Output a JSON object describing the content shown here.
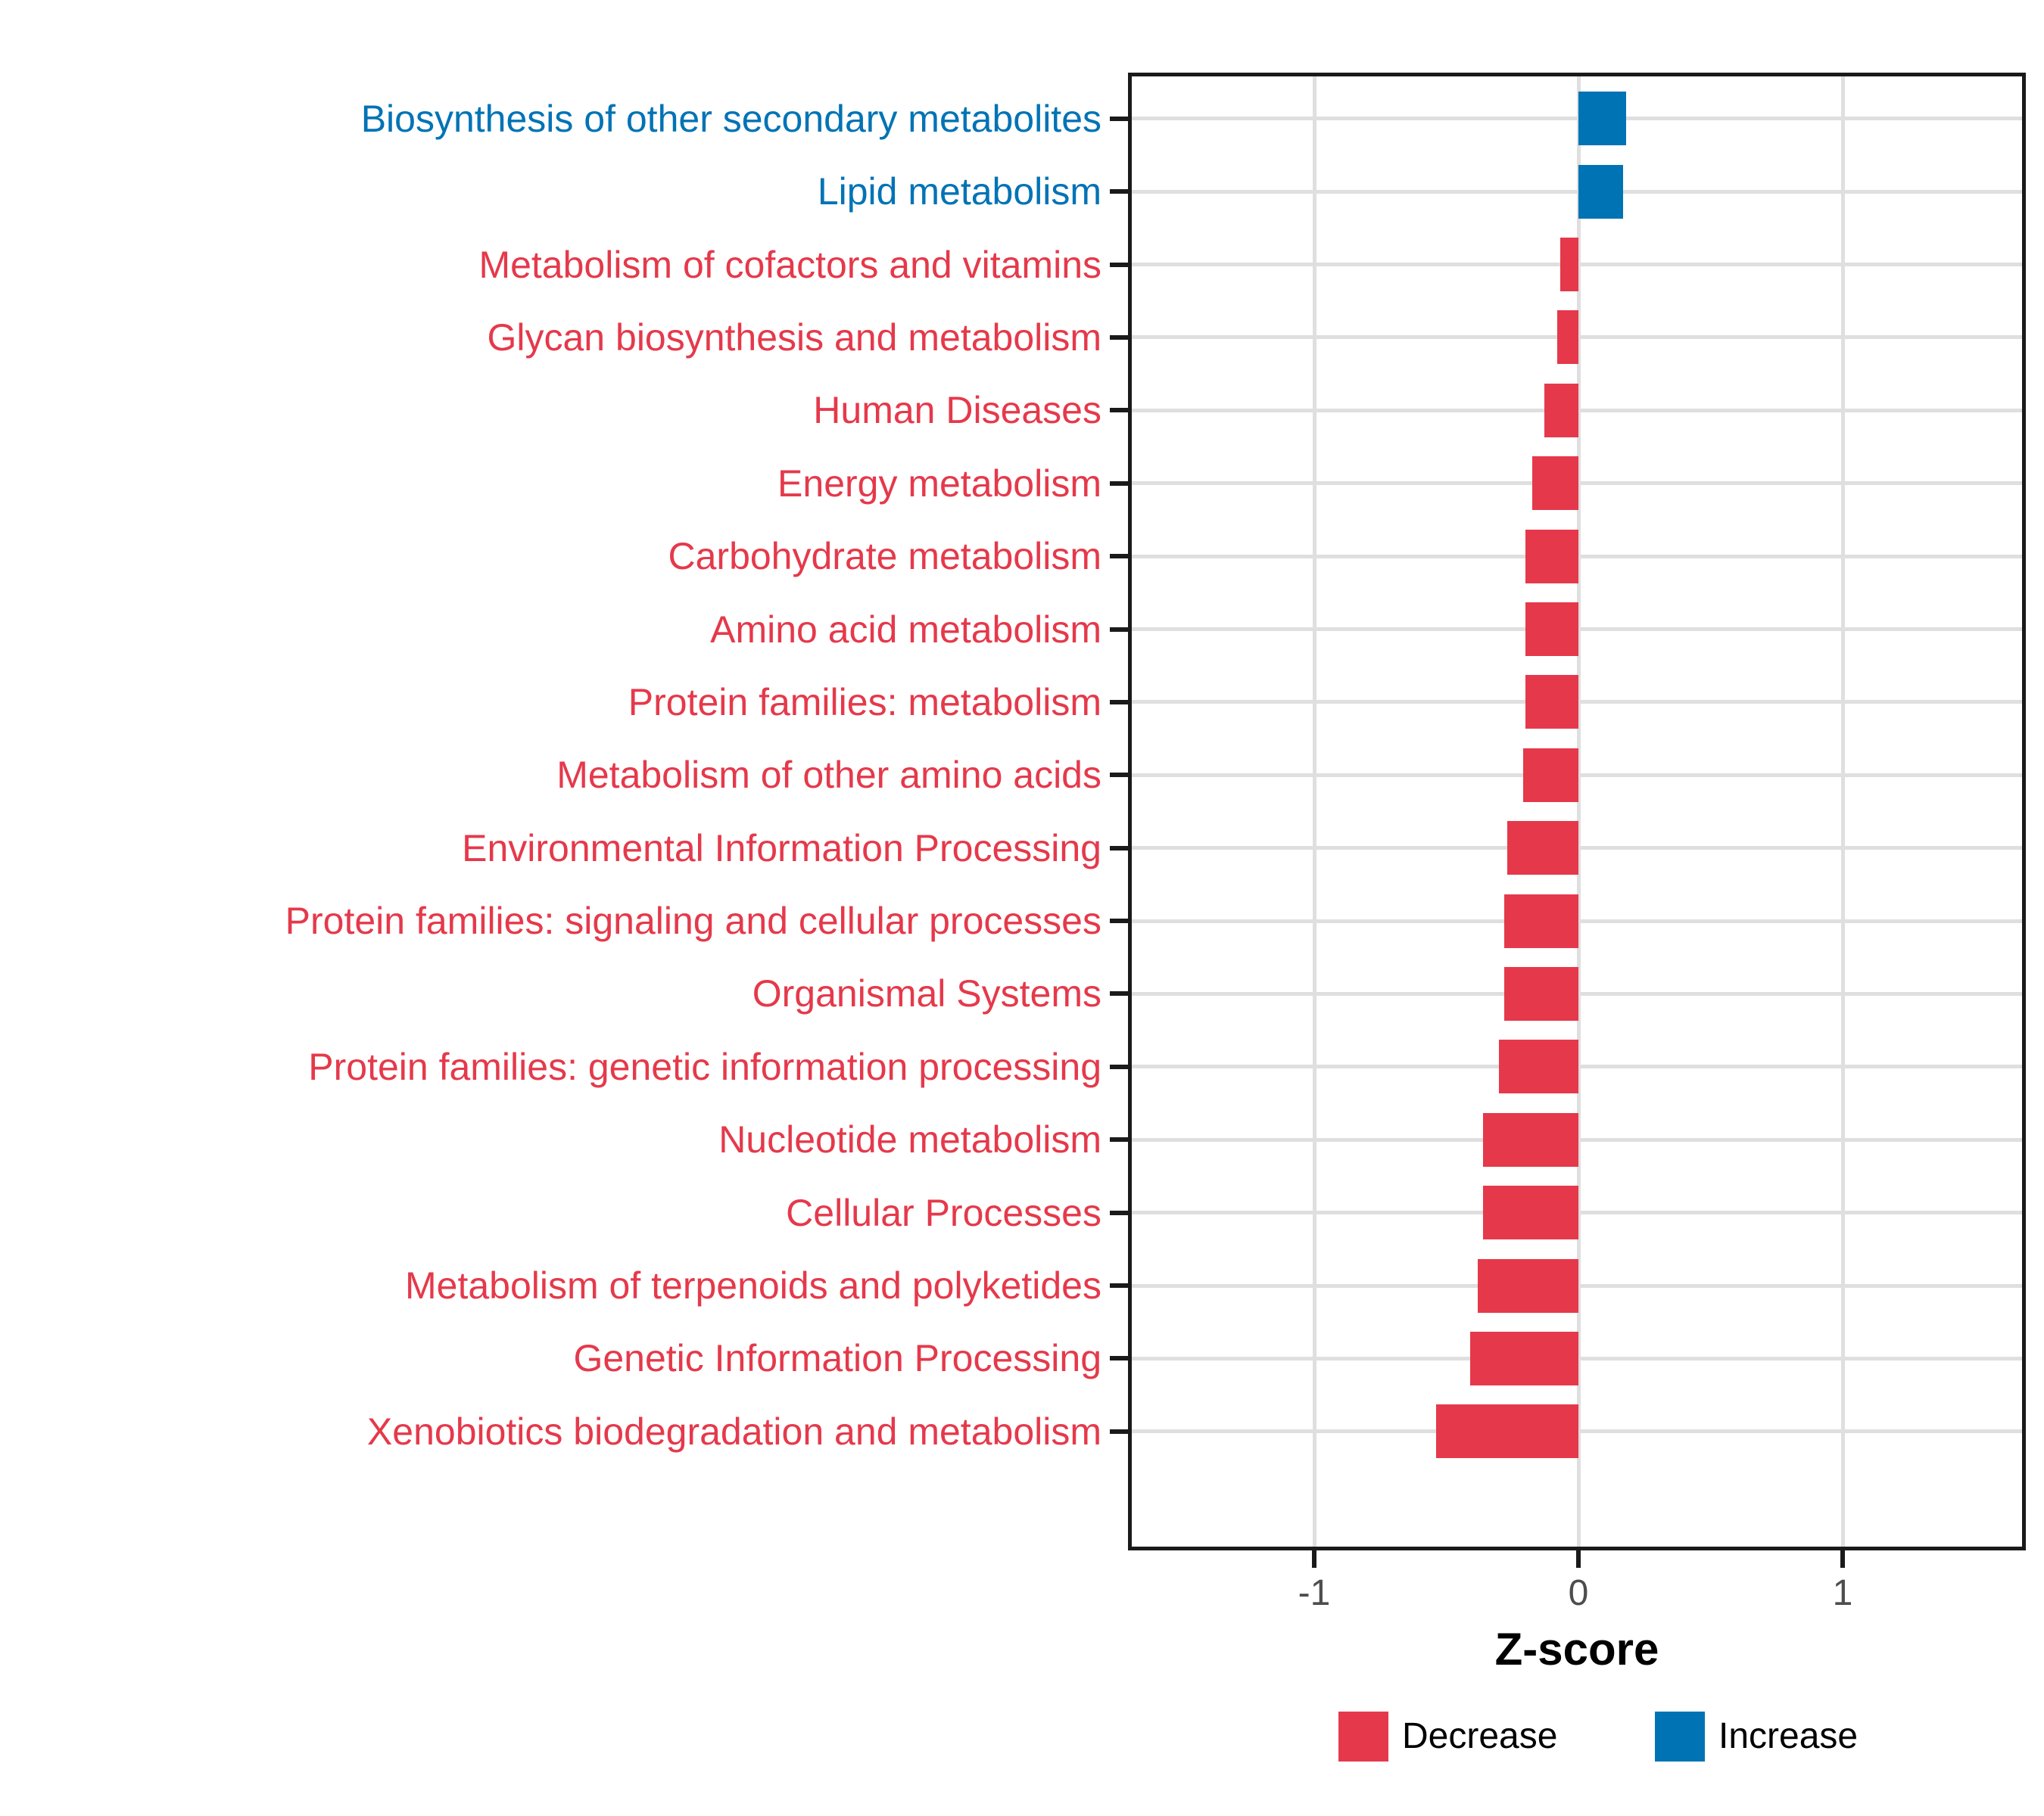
{
  "chart_data": {
    "type": "bar",
    "orientation": "horizontal",
    "title": "",
    "xlabel": "Z-score",
    "ylabel": "",
    "xlim": [
      -1.69,
      1.69
    ],
    "x_ticks": [
      {
        "value": -1,
        "label": "-1"
      },
      {
        "value": 0,
        "label": "0"
      },
      {
        "value": 1,
        "label": "1"
      }
    ],
    "grid": true,
    "categories": [
      "Biosynthesis of other secondary metabolites",
      "Lipid metabolism",
      "Metabolism of cofactors and vitamins",
      "Glycan biosynthesis and metabolism",
      "Human Diseases",
      "Energy metabolism",
      "Carbohydrate metabolism",
      "Amino acid metabolism",
      "Protein families: metabolism",
      "Metabolism of other amino acids",
      "Environmental Information Processing",
      "Protein families: signaling and cellular processes",
      "Organismal Systems",
      "Protein families: genetic information processing",
      "Nucleotide metabolism",
      "Cellular Processes",
      "Metabolism of terpenoids and polyketides",
      "Genetic Information Processing",
      "Xenobiotics biodegradation and metabolism"
    ],
    "values": [
      0.18,
      0.17,
      -0.07,
      -0.08,
      -0.13,
      -0.175,
      -0.2,
      -0.2,
      -0.2,
      -0.21,
      -0.27,
      -0.28,
      -0.28,
      -0.3,
      -0.36,
      -0.36,
      -0.38,
      -0.41,
      -0.54
    ],
    "series_name": "Z-score",
    "legend_position": "bottom",
    "legend": [
      {
        "label": "Decrease",
        "color": "#e5394b"
      },
      {
        "label": "Increase",
        "color": "#0073b5"
      }
    ],
    "colors": {
      "increase": "#0073b5",
      "decrease": "#e5394b",
      "grid": "#dfdfdf",
      "axis_text": "#4d4d4d",
      "panel_border": "#1a1a1a"
    }
  }
}
